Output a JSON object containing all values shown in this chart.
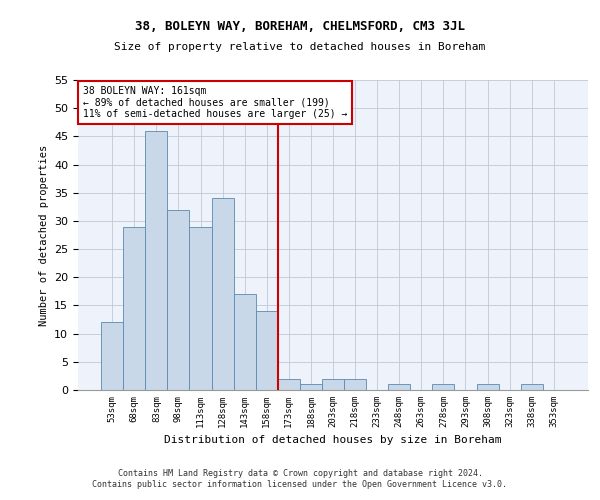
{
  "title1": "38, BOLEYN WAY, BOREHAM, CHELMSFORD, CM3 3JL",
  "title2": "Size of property relative to detached houses in Boreham",
  "xlabel": "Distribution of detached houses by size in Boreham",
  "ylabel": "Number of detached properties",
  "footer1": "Contains HM Land Registry data © Crown copyright and database right 2024.",
  "footer2": "Contains public sector information licensed under the Open Government Licence v3.0.",
  "annotation_title": "38 BOLEYN WAY: 161sqm",
  "annotation_line1": "← 89% of detached houses are smaller (199)",
  "annotation_line2": "11% of semi-detached houses are larger (25) →",
  "bar_labels": [
    "53sqm",
    "68sqm",
    "83sqm",
    "98sqm",
    "113sqm",
    "128sqm",
    "143sqm",
    "158sqm",
    "173sqm",
    "188sqm",
    "203sqm",
    "218sqm",
    "233sqm",
    "248sqm",
    "263sqm",
    "278sqm",
    "293sqm",
    "308sqm",
    "323sqm",
    "338sqm",
    "353sqm"
  ],
  "bar_values": [
    12,
    29,
    46,
    32,
    29,
    34,
    17,
    14,
    2,
    1,
    2,
    2,
    0,
    1,
    0,
    1,
    0,
    1,
    0,
    1,
    0
  ],
  "bar_color": "#c8d8e8",
  "bar_edge_color": "#5a8ab0",
  "vline_x": 7.5,
  "vline_color": "#cc0000",
  "annotation_box_color": "#cc0000",
  "background_color": "#eef2fa",
  "ylim": [
    0,
    55
  ],
  "yticks": [
    0,
    5,
    10,
    15,
    20,
    25,
    30,
    35,
    40,
    45,
    50,
    55
  ]
}
